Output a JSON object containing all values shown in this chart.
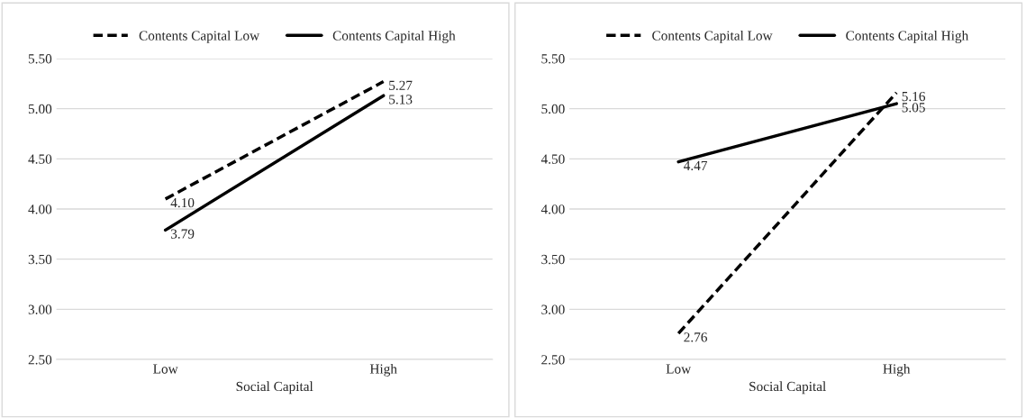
{
  "chart_data": [
    {
      "type": "line",
      "xlabel": "Social Capital",
      "categories": [
        "Low",
        "High"
      ],
      "series": [
        {
          "name": "Contents Capital Low",
          "color": "#000000",
          "line_style": "dashed",
          "values": [
            4.1,
            5.27
          ],
          "value_labels": [
            "4.10",
            "5.27"
          ]
        },
        {
          "name": "Contents Capital High",
          "color": "#000000",
          "line_style": "solid",
          "values": [
            3.79,
            5.13
          ],
          "value_labels": [
            "3.79",
            "5.13"
          ]
        }
      ],
      "ylim": [
        2.5,
        5.5
      ],
      "yticks": [
        {
          "value": 2.5,
          "label": "2.50"
        },
        {
          "value": 3.0,
          "label": "3.00"
        },
        {
          "value": 3.5,
          "label": "3.50"
        },
        {
          "value": 4.0,
          "label": "4.00"
        },
        {
          "value": 4.5,
          "label": "4.50"
        },
        {
          "value": 5.0,
          "label": "5.00"
        },
        {
          "value": 5.5,
          "label": "5.50"
        }
      ],
      "grid": "y",
      "legend": "top",
      "marker": "none"
    },
    {
      "type": "line",
      "xlabel": "Social Capital",
      "categories": [
        "Low",
        "High"
      ],
      "series": [
        {
          "name": "Contents Capital Low",
          "color": "#000000",
          "line_style": "dashed",
          "values": [
            2.76,
            5.16
          ],
          "value_labels": [
            "2.76",
            "5.16"
          ]
        },
        {
          "name": "Contents Capital High",
          "color": "#000000",
          "line_style": "solid",
          "values": [
            4.47,
            5.05
          ],
          "value_labels": [
            "4.47",
            "5.05"
          ]
        }
      ],
      "ylim": [
        2.5,
        5.5
      ],
      "yticks": [
        {
          "value": 2.5,
          "label": "2.50"
        },
        {
          "value": 3.0,
          "label": "3.00"
        },
        {
          "value": 3.5,
          "label": "3.50"
        },
        {
          "value": 4.0,
          "label": "4.00"
        },
        {
          "value": 4.5,
          "label": "4.50"
        },
        {
          "value": 5.0,
          "label": "5.00"
        },
        {
          "value": 5.5,
          "label": "5.50"
        }
      ],
      "grid": "y",
      "legend": "top",
      "marker": "none"
    }
  ]
}
